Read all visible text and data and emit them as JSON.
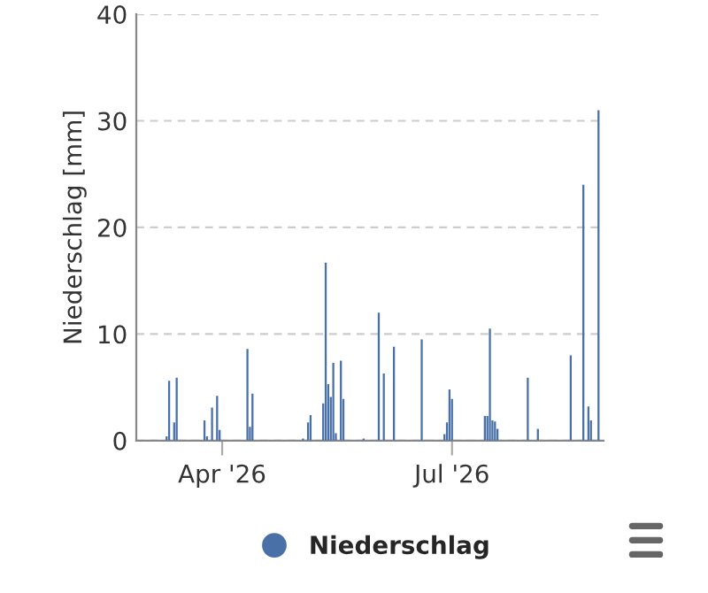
{
  "chart_data": {
    "type": "bar",
    "ylabel": "Niederschlag [mm]",
    "x": [
      "2026-03-10",
      "2026-03-11",
      "2026-03-13",
      "2026-03-14",
      "2026-03-25",
      "2026-03-26",
      "2026-03-28",
      "2026-03-30",
      "2026-03-31",
      "2026-04-11",
      "2026-04-12",
      "2026-04-13",
      "2026-05-03",
      "2026-05-05",
      "2026-05-06",
      "2026-05-11",
      "2026-05-12",
      "2026-05-13",
      "2026-05-14",
      "2026-05-15",
      "2026-05-16",
      "2026-05-18",
      "2026-05-19",
      "2026-05-27",
      "2026-06-02",
      "2026-06-04",
      "2026-06-08",
      "2026-06-19",
      "2026-06-28",
      "2026-06-29",
      "2026-06-30",
      "2026-07-01",
      "2026-07-14",
      "2026-07-15",
      "2026-07-16",
      "2026-07-17",
      "2026-07-18",
      "2026-07-19",
      "2026-07-31",
      "2026-08-04",
      "2026-08-17",
      "2026-08-22",
      "2026-08-24",
      "2026-08-25",
      "2026-08-28"
    ],
    "series": [
      {
        "name": "Niederschlag",
        "color": "#4a70a8",
        "values": [
          0.4,
          5.6,
          1.7,
          5.9,
          1.9,
          0.4,
          3.1,
          4.2,
          1.0,
          8.6,
          1.3,
          4.4,
          0.2,
          1.7,
          2.4,
          3.5,
          16.7,
          5.3,
          4.1,
          7.3,
          0.7,
          7.5,
          3.9,
          0.2,
          12.0,
          6.3,
          8.8,
          9.5,
          0.6,
          1.7,
          4.8,
          3.9,
          2.3,
          2.3,
          10.5,
          1.9,
          1.8,
          1.1,
          5.9,
          1.1,
          8.0,
          24.0,
          3.2,
          1.9,
          31.0
        ]
      }
    ],
    "xlim": [
      "2026-02-26",
      "2026-08-30"
    ],
    "xticks": [
      {
        "value": "2026-04-01",
        "label": "Apr '26"
      },
      {
        "value": "2026-07-01",
        "label": "Jul '26"
      }
    ],
    "ylim": [
      0,
      40
    ],
    "yticks": [
      0,
      10,
      20,
      30,
      40
    ],
    "grid": "y",
    "legend": "bottom"
  }
}
